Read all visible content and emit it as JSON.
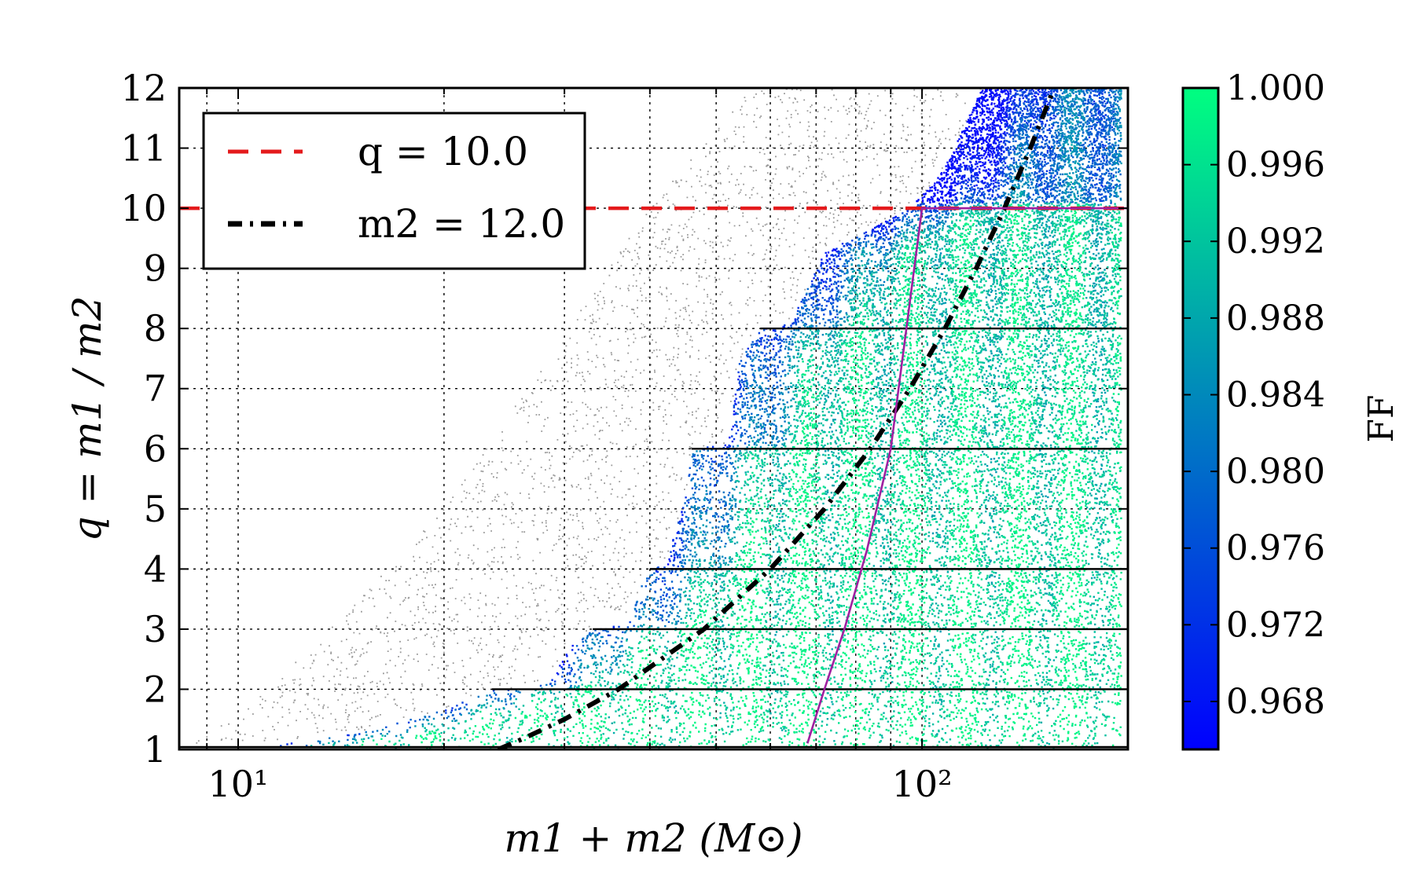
{
  "chart_data": {
    "type": "scatter",
    "xlabel": "m1 + m2 (M⊙)",
    "ylabel": "q = m1 / m2",
    "xscale": "log",
    "xlim": [
      8.2,
      200
    ],
    "ylim": [
      1,
      12
    ],
    "x_major_ticks": [
      10,
      100
    ],
    "x_tick_labels": [
      "10¹",
      "10²"
    ],
    "y_ticks": [
      1,
      2,
      3,
      4,
      5,
      6,
      7,
      8,
      9,
      10,
      11,
      12
    ],
    "y_tick_labels": [
      "1",
      "2",
      "3",
      "4",
      "5",
      "6",
      "7",
      "8",
      "9",
      "10",
      "11",
      "12"
    ],
    "grid": true,
    "legend": {
      "placement": "top-left",
      "entries": [
        {
          "label": "q = 10.0",
          "color": "#e41a1c",
          "style": "dashed"
        },
        {
          "label": "m2 = 12.0",
          "color": "#000000",
          "style": "dash-dot"
        }
      ]
    },
    "colorbar": {
      "label": "FF",
      "range": [
        0.9655,
        1.0
      ],
      "ticks": [
        1.0,
        0.996,
        0.992,
        0.988,
        0.984,
        0.98,
        0.976,
        0.972,
        0.968
      ],
      "tick_labels": [
        "1.000",
        "0.996",
        "0.992",
        "0.988",
        "0.984",
        "0.980",
        "0.976",
        "0.972",
        "0.968"
      ],
      "colormap": "winter",
      "color_low": "#0000ff",
      "color_high": "#00ff80"
    },
    "series": [
      {
        "role": "q10-line",
        "color": "#e41a1c",
        "style": "dashed",
        "x": [
          8.2,
          200
        ],
        "y": [
          10,
          10
        ]
      },
      {
        "role": "m2-12-curve",
        "color": "#000000",
        "style": "dash-dot",
        "x": [
          24,
          26,
          30,
          36,
          48,
          60,
          72,
          84,
          96,
          108,
          120,
          132,
          144,
          156
        ],
        "y": [
          1,
          1.17,
          1.5,
          2,
          3,
          4,
          5,
          6,
          7,
          8,
          9,
          10,
          11,
          12
        ]
      },
      {
        "role": "boundary-curve",
        "color": "#a020a0",
        "style": "solid",
        "x": [
          68,
          72,
          77,
          83,
          90,
          100,
          200
        ],
        "y": [
          1.1,
          2,
          3,
          4.3,
          6,
          10,
          10
        ]
      }
    ],
    "horizontal_lines": [
      {
        "y": 1.04,
        "x_start": 8.2,
        "x_end": 200
      },
      {
        "y": 2,
        "x_start": 23.5,
        "x_end": 200
      },
      {
        "y": 3,
        "x_start": 33,
        "x_end": 200
      },
      {
        "y": 4,
        "x_start": 40,
        "x_end": 200
      },
      {
        "y": 6,
        "x_start": 46,
        "x_end": 200
      },
      {
        "y": 8,
        "x_start": 58,
        "x_end": 200
      }
    ]
  }
}
